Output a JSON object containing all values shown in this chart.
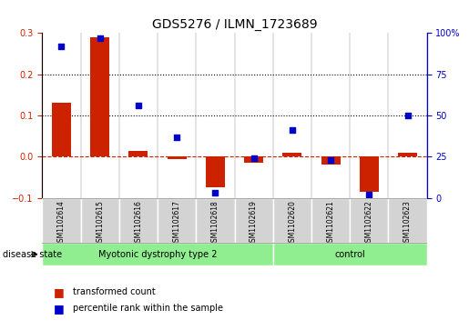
{
  "title": "GDS5276 / ILMN_1723689",
  "samples": [
    "GSM1102614",
    "GSM1102615",
    "GSM1102616",
    "GSM1102617",
    "GSM1102618",
    "GSM1102619",
    "GSM1102620",
    "GSM1102621",
    "GSM1102622",
    "GSM1102623"
  ],
  "transformed_count": [
    0.13,
    0.29,
    0.015,
    -0.005,
    -0.075,
    -0.015,
    0.01,
    -0.02,
    -0.085,
    0.01
  ],
  "percentile_rank_right": [
    92,
    97,
    56,
    37,
    3,
    24,
    41,
    23,
    2,
    50
  ],
  "disease_groups": [
    {
      "label": "Myotonic dystrophy type 2",
      "start": 0,
      "end": 6,
      "color": "#90ee90"
    },
    {
      "label": "control",
      "start": 6,
      "end": 10,
      "color": "#90ee90"
    }
  ],
  "ylim_left": [
    -0.1,
    0.3
  ],
  "ylim_right": [
    0,
    100
  ],
  "yticks_left": [
    -0.1,
    0.0,
    0.1,
    0.2,
    0.3
  ],
  "yticks_right": [
    0,
    25,
    50,
    75,
    100
  ],
  "bar_color": "#cc2200",
  "scatter_color": "#0000cc",
  "hline_color": "#cc2200",
  "hline_style": "--",
  "dotline_color": "black",
  "dotline_style": ":",
  "left_axis_color": "#cc2200",
  "right_axis_color": "#0000cc",
  "label_bg_color": "#d3d3d3",
  "bar_width": 0.5
}
